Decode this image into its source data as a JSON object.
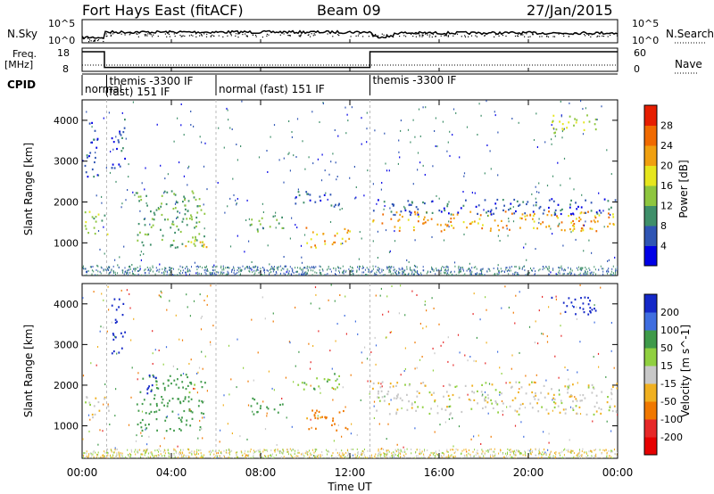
{
  "header": {
    "radar": "Fort Hays East (fitACF)",
    "beam": "Beam 09",
    "date": "27/Jan/2015"
  },
  "nsky_panel": {
    "left_label": "N.Sky",
    "right_label": "N.Search",
    "left_ticks": [
      "10^5",
      "10^0"
    ],
    "right_ticks": [
      "10^5",
      "10^0"
    ]
  },
  "freq_panel": {
    "left_label_1": "Freq.",
    "left_label_2": "[MHz]",
    "right_label": "Nave",
    "left_ticks": [
      "18",
      "8"
    ],
    "right_ticks": [
      "60",
      "0"
    ]
  },
  "cpid": {
    "label": "CPID",
    "segments": [
      {
        "name": "normal",
        "start_h": 0.0
      },
      {
        "name": "themis -3300 IF",
        "start_h": 1.1
      },
      {
        "name": "(fast) 151 IF",
        "start_h": 1.1
      },
      {
        "name": "normal (fast) 151 IF",
        "start_h": 6.0
      },
      {
        "name": "themis -3300 IF",
        "start_h": 12.9
      }
    ]
  },
  "x_axis": {
    "label": "Time UT",
    "ticks": [
      "00:00",
      "04:00",
      "08:00",
      "12:00",
      "16:00",
      "20:00",
      "00:00"
    ]
  },
  "power_panel": {
    "ylabel": "Slant Range [km]",
    "yticks": [
      "1000",
      "2000",
      "3000",
      "4000"
    ],
    "colorbar_label": "Power [dB]",
    "colorbar_ticks": [
      "4",
      "8",
      "12",
      "16",
      "20",
      "24",
      "28"
    ],
    "colors": [
      "#0000e6",
      "#2f55b4",
      "#3f8f6a",
      "#8ec63f",
      "#e6e61e",
      "#f0a010",
      "#f06a00",
      "#e61e00"
    ]
  },
  "velocity_panel": {
    "ylabel": "Slant Range [km]",
    "yticks": [
      "1000",
      "2000",
      "3000",
      "4000"
    ],
    "colorbar_label": "Velocity [m s^-1]",
    "colorbar_ticks": [
      "200",
      "100",
      "50",
      "15",
      "-15",
      "-50",
      "-100",
      "-200"
    ],
    "colors": [
      "#1428c8",
      "#3f6ee0",
      "#3f9a4a",
      "#90d040",
      "#c8c8c8",
      "#f0b020",
      "#f07800",
      "#e62828",
      "#e60000"
    ]
  },
  "chart_data": {
    "type": "heatmap",
    "x_range_hours": [
      0,
      24
    ],
    "y_range_km": [
      200,
      4500
    ],
    "freq_mhz": [
      {
        "from_h": 0.0,
        "to_h": 1.0,
        "value": 18
      },
      {
        "from_h": 1.0,
        "to_h": 12.9,
        "value": 10
      },
      {
        "from_h": 12.9,
        "to_h": 24.0,
        "value": 18
      }
    ],
    "power_regions": [
      {
        "t0": 0.1,
        "t1": 1.2,
        "r0": 1200,
        "r1": 1800,
        "dB": 14
      },
      {
        "t0": 0.1,
        "t1": 0.7,
        "r0": 2600,
        "r1": 4000,
        "dB": 6
      },
      {
        "t0": 1.3,
        "t1": 1.9,
        "r0": 2800,
        "r1": 4200,
        "dB": 6
      },
      {
        "t0": 2.4,
        "t1": 5.5,
        "r0": 900,
        "r1": 2300,
        "dB": 12
      },
      {
        "t0": 4.0,
        "t1": 5.6,
        "r0": 900,
        "r1": 1100,
        "dB": 20
      },
      {
        "t0": 7.5,
        "t1": 9.0,
        "r0": 1300,
        "r1": 1700,
        "dB": 12
      },
      {
        "t0": 9.5,
        "t1": 11.5,
        "r0": 1900,
        "r1": 2300,
        "dB": 6
      },
      {
        "t0": 10.0,
        "t1": 12.0,
        "r0": 900,
        "r1": 1400,
        "dB": 22
      },
      {
        "t0": 13.0,
        "t1": 24.0,
        "r0": 1300,
        "r1": 1800,
        "dB": 22
      },
      {
        "t0": 13.0,
        "t1": 24.0,
        "r0": 1700,
        "r1": 2100,
        "dB": 6
      },
      {
        "t0": 21.0,
        "t1": 23.0,
        "r0": 3700,
        "r1": 4200,
        "dB": 16
      }
    ],
    "velocity_regions": [
      {
        "t0": 0.1,
        "t1": 1.2,
        "r0": 1200,
        "r1": 1800,
        "v": 0
      },
      {
        "t0": 1.3,
        "t1": 1.9,
        "r0": 2800,
        "r1": 4200,
        "v": 200
      },
      {
        "t0": 2.4,
        "t1": 5.5,
        "r0": 900,
        "r1": 2300,
        "v": 50
      },
      {
        "t0": 2.8,
        "t1": 3.5,
        "r0": 1800,
        "r1": 2300,
        "v": 200
      },
      {
        "t0": 7.5,
        "t1": 9.0,
        "r0": 1300,
        "r1": 1700,
        "v": 50
      },
      {
        "t0": 10.0,
        "t1": 12.0,
        "r0": 900,
        "r1": 1400,
        "v": -50
      },
      {
        "t0": 9.5,
        "t1": 11.5,
        "r0": 1900,
        "r1": 2300,
        "v": 30
      },
      {
        "t0": 13.0,
        "t1": 24.0,
        "r0": 1300,
        "r1": 2100,
        "v": 0
      },
      {
        "t0": 21.0,
        "t1": 23.0,
        "r0": 3700,
        "r1": 4200,
        "v": 200
      }
    ]
  }
}
